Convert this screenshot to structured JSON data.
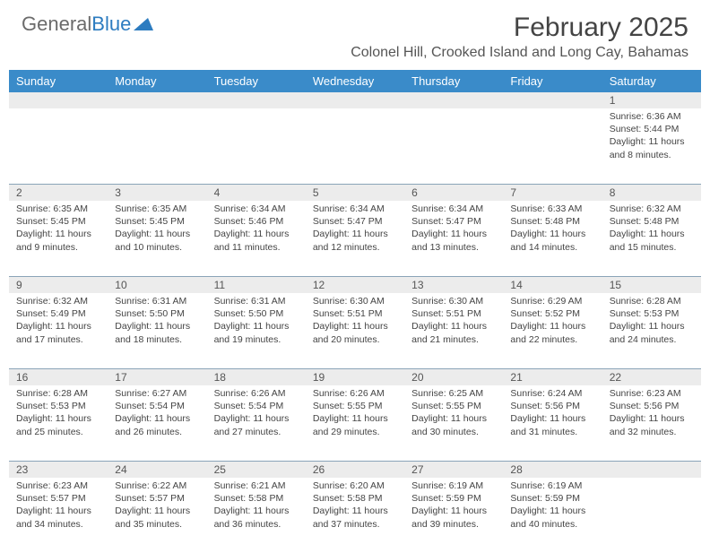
{
  "logo": {
    "text_gray": "General",
    "text_blue": "Blue"
  },
  "title": "February 2025",
  "location": "Colonel Hill, Crooked Island and Long Cay, Bahamas",
  "colors": {
    "header_bg": "#3a8bc9",
    "header_text": "#ffffff",
    "daynum_bg": "#ececec",
    "rule": "#8aa4b8",
    "body_text": "#444444"
  },
  "day_names": [
    "Sunday",
    "Monday",
    "Tuesday",
    "Wednesday",
    "Thursday",
    "Friday",
    "Saturday"
  ],
  "weeks": [
    {
      "days": [
        {
          "num": "",
          "lines": []
        },
        {
          "num": "",
          "lines": []
        },
        {
          "num": "",
          "lines": []
        },
        {
          "num": "",
          "lines": []
        },
        {
          "num": "",
          "lines": []
        },
        {
          "num": "",
          "lines": []
        },
        {
          "num": "1",
          "lines": [
            "Sunrise: 6:36 AM",
            "Sunset: 5:44 PM",
            "Daylight: 11 hours and 8 minutes."
          ]
        }
      ]
    },
    {
      "days": [
        {
          "num": "2",
          "lines": [
            "Sunrise: 6:35 AM",
            "Sunset: 5:45 PM",
            "Daylight: 11 hours and 9 minutes."
          ]
        },
        {
          "num": "3",
          "lines": [
            "Sunrise: 6:35 AM",
            "Sunset: 5:45 PM",
            "Daylight: 11 hours and 10 minutes."
          ]
        },
        {
          "num": "4",
          "lines": [
            "Sunrise: 6:34 AM",
            "Sunset: 5:46 PM",
            "Daylight: 11 hours and 11 minutes."
          ]
        },
        {
          "num": "5",
          "lines": [
            "Sunrise: 6:34 AM",
            "Sunset: 5:47 PM",
            "Daylight: 11 hours and 12 minutes."
          ]
        },
        {
          "num": "6",
          "lines": [
            "Sunrise: 6:34 AM",
            "Sunset: 5:47 PM",
            "Daylight: 11 hours and 13 minutes."
          ]
        },
        {
          "num": "7",
          "lines": [
            "Sunrise: 6:33 AM",
            "Sunset: 5:48 PM",
            "Daylight: 11 hours and 14 minutes."
          ]
        },
        {
          "num": "8",
          "lines": [
            "Sunrise: 6:32 AM",
            "Sunset: 5:48 PM",
            "Daylight: 11 hours and 15 minutes."
          ]
        }
      ]
    },
    {
      "days": [
        {
          "num": "9",
          "lines": [
            "Sunrise: 6:32 AM",
            "Sunset: 5:49 PM",
            "Daylight: 11 hours and 17 minutes."
          ]
        },
        {
          "num": "10",
          "lines": [
            "Sunrise: 6:31 AM",
            "Sunset: 5:50 PM",
            "Daylight: 11 hours and 18 minutes."
          ]
        },
        {
          "num": "11",
          "lines": [
            "Sunrise: 6:31 AM",
            "Sunset: 5:50 PM",
            "Daylight: 11 hours and 19 minutes."
          ]
        },
        {
          "num": "12",
          "lines": [
            "Sunrise: 6:30 AM",
            "Sunset: 5:51 PM",
            "Daylight: 11 hours and 20 minutes."
          ]
        },
        {
          "num": "13",
          "lines": [
            "Sunrise: 6:30 AM",
            "Sunset: 5:51 PM",
            "Daylight: 11 hours and 21 minutes."
          ]
        },
        {
          "num": "14",
          "lines": [
            "Sunrise: 6:29 AM",
            "Sunset: 5:52 PM",
            "Daylight: 11 hours and 22 minutes."
          ]
        },
        {
          "num": "15",
          "lines": [
            "Sunrise: 6:28 AM",
            "Sunset: 5:53 PM",
            "Daylight: 11 hours and 24 minutes."
          ]
        }
      ]
    },
    {
      "days": [
        {
          "num": "16",
          "lines": [
            "Sunrise: 6:28 AM",
            "Sunset: 5:53 PM",
            "Daylight: 11 hours and 25 minutes."
          ]
        },
        {
          "num": "17",
          "lines": [
            "Sunrise: 6:27 AM",
            "Sunset: 5:54 PM",
            "Daylight: 11 hours and 26 minutes."
          ]
        },
        {
          "num": "18",
          "lines": [
            "Sunrise: 6:26 AM",
            "Sunset: 5:54 PM",
            "Daylight: 11 hours and 27 minutes."
          ]
        },
        {
          "num": "19",
          "lines": [
            "Sunrise: 6:26 AM",
            "Sunset: 5:55 PM",
            "Daylight: 11 hours and 29 minutes."
          ]
        },
        {
          "num": "20",
          "lines": [
            "Sunrise: 6:25 AM",
            "Sunset: 5:55 PM",
            "Daylight: 11 hours and 30 minutes."
          ]
        },
        {
          "num": "21",
          "lines": [
            "Sunrise: 6:24 AM",
            "Sunset: 5:56 PM",
            "Daylight: 11 hours and 31 minutes."
          ]
        },
        {
          "num": "22",
          "lines": [
            "Sunrise: 6:23 AM",
            "Sunset: 5:56 PM",
            "Daylight: 11 hours and 32 minutes."
          ]
        }
      ]
    },
    {
      "days": [
        {
          "num": "23",
          "lines": [
            "Sunrise: 6:23 AM",
            "Sunset: 5:57 PM",
            "Daylight: 11 hours and 34 minutes."
          ]
        },
        {
          "num": "24",
          "lines": [
            "Sunrise: 6:22 AM",
            "Sunset: 5:57 PM",
            "Daylight: 11 hours and 35 minutes."
          ]
        },
        {
          "num": "25",
          "lines": [
            "Sunrise: 6:21 AM",
            "Sunset: 5:58 PM",
            "Daylight: 11 hours and 36 minutes."
          ]
        },
        {
          "num": "26",
          "lines": [
            "Sunrise: 6:20 AM",
            "Sunset: 5:58 PM",
            "Daylight: 11 hours and 37 minutes."
          ]
        },
        {
          "num": "27",
          "lines": [
            "Sunrise: 6:19 AM",
            "Sunset: 5:59 PM",
            "Daylight: 11 hours and 39 minutes."
          ]
        },
        {
          "num": "28",
          "lines": [
            "Sunrise: 6:19 AM",
            "Sunset: 5:59 PM",
            "Daylight: 11 hours and 40 minutes."
          ]
        },
        {
          "num": "",
          "lines": []
        }
      ]
    }
  ]
}
